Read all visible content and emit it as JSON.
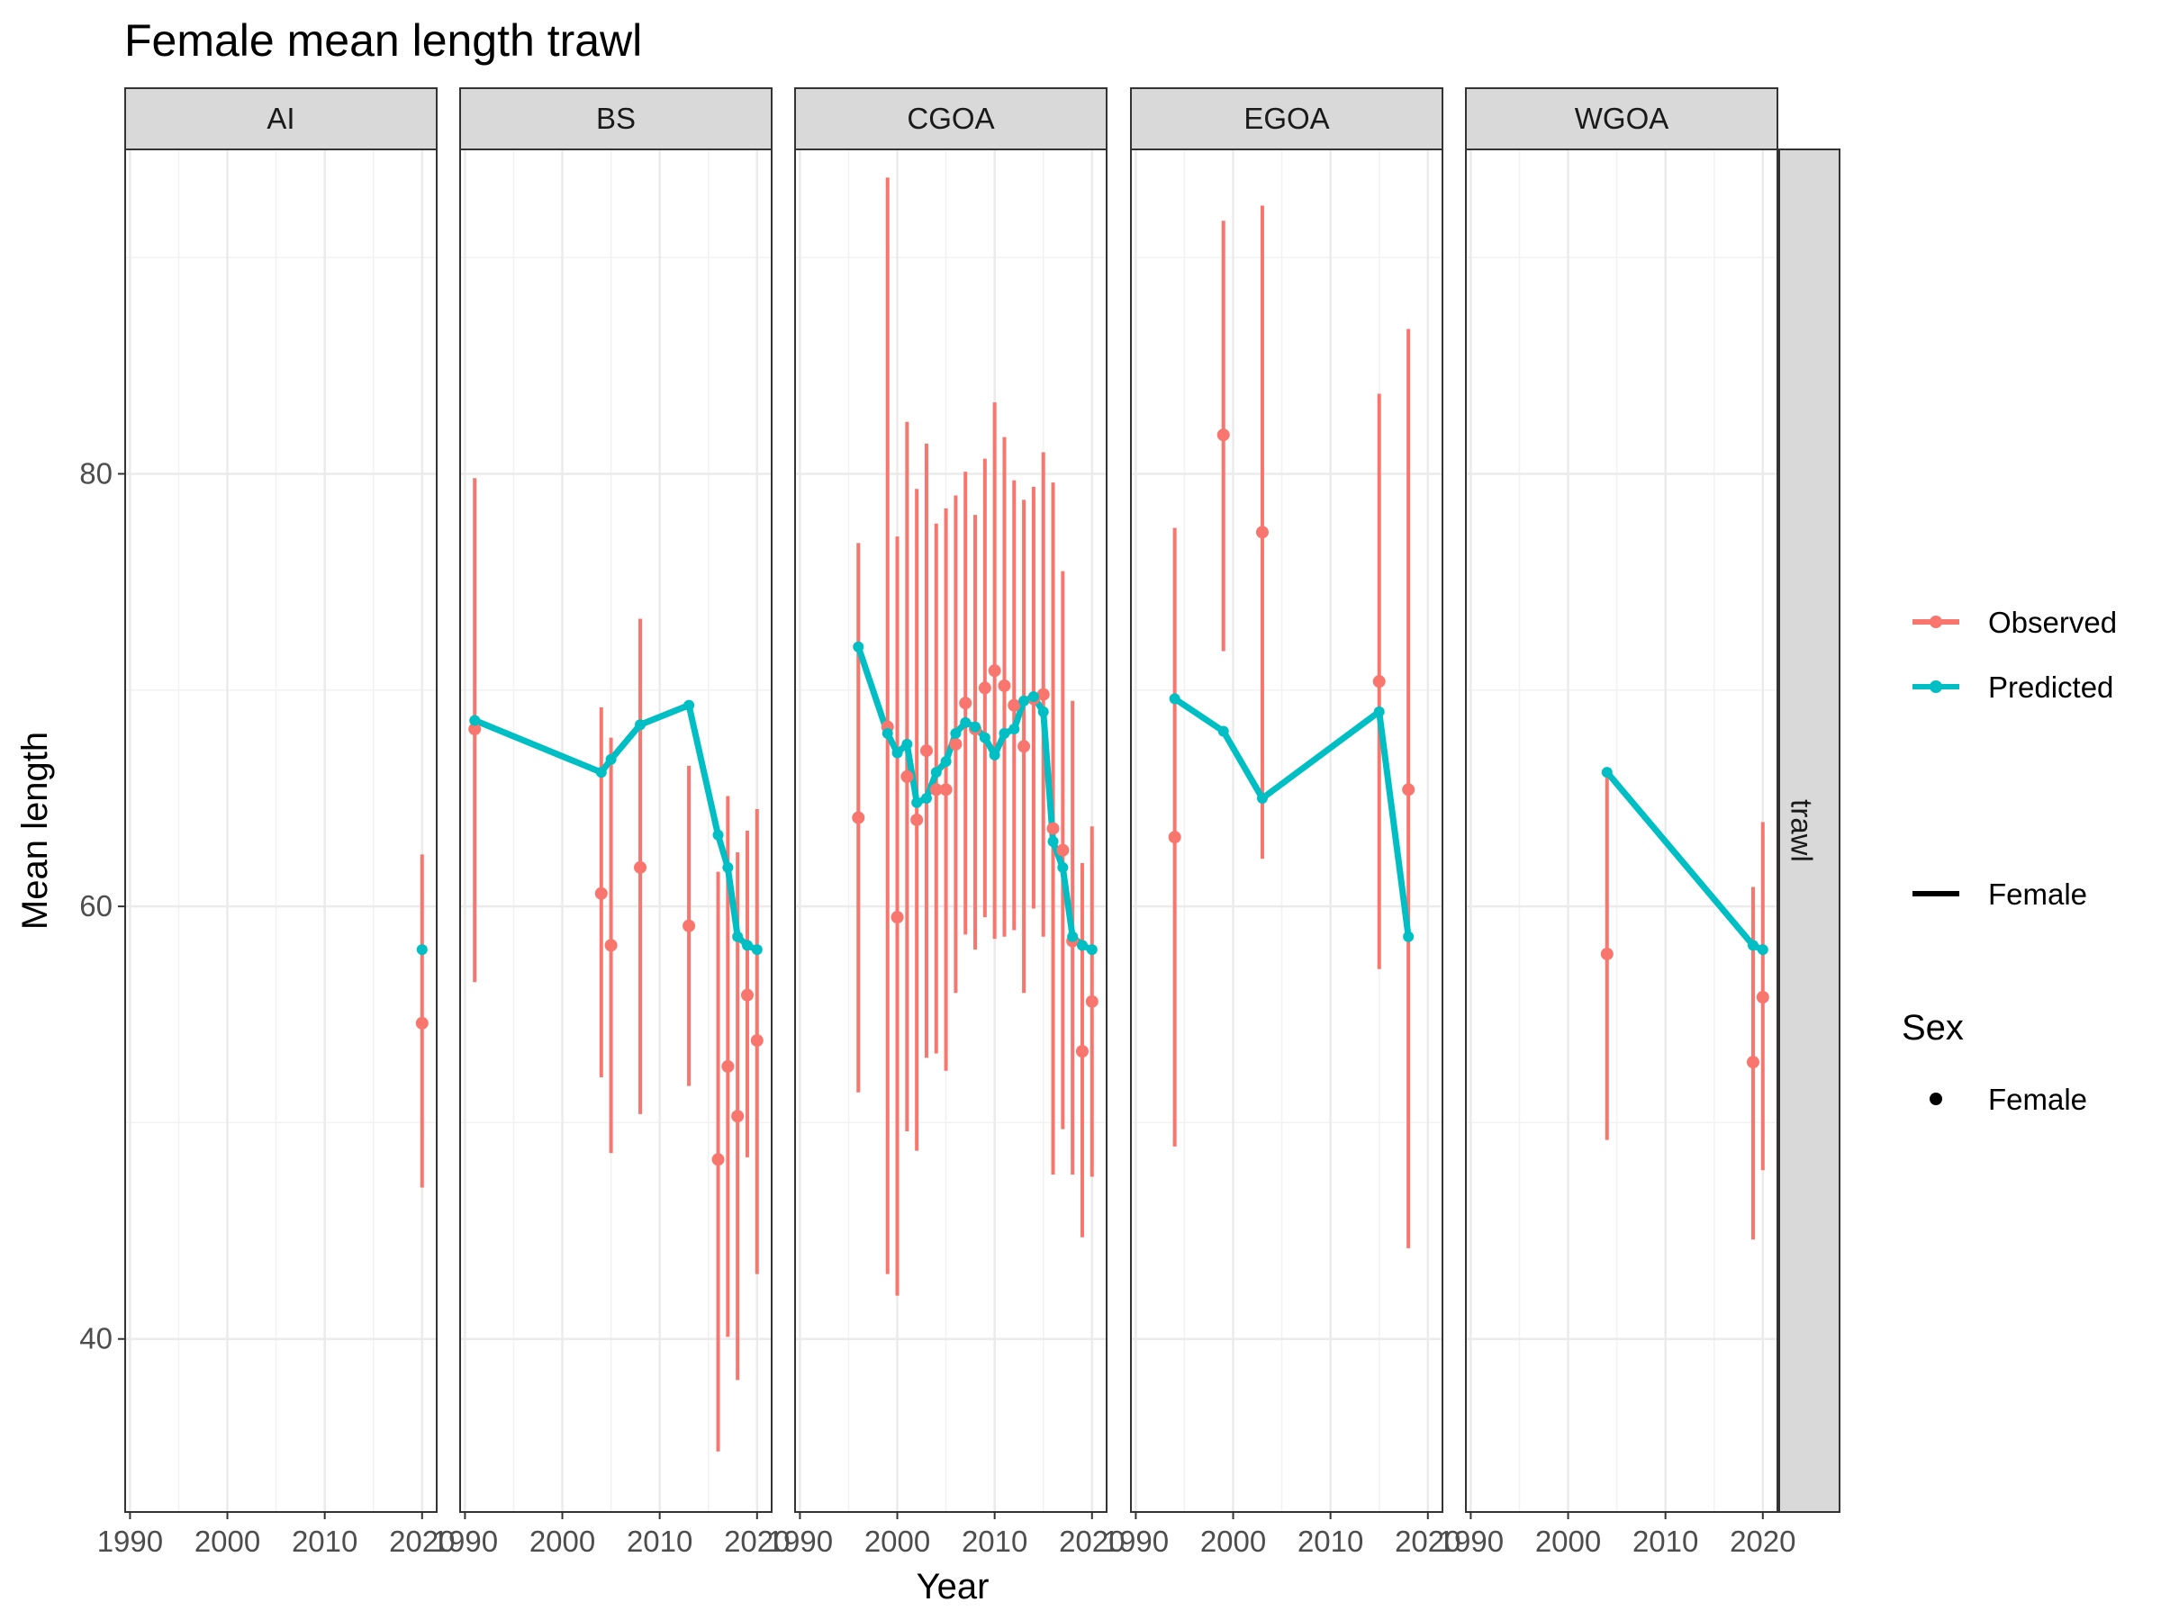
{
  "chart_data": {
    "type": "line",
    "title": "Female mean length trawl",
    "xlabel": "Year",
    "ylabel": "Mean length",
    "xlim": [
      1989.5,
      2021.5
    ],
    "ylim": [
      32,
      95
    ],
    "x_ticks": [
      1990,
      2000,
      2010,
      2020
    ],
    "y_ticks": [
      40,
      60,
      80
    ],
    "grid": true,
    "facet_row_label": "trawl",
    "colors": {
      "Observed": "#F8766D",
      "Predicted": "#00BFC4"
    },
    "legend": {
      "placement": "right",
      "items": [
        {
          "label": "Observed",
          "color": "#F8766D"
        },
        {
          "label": "Predicted",
          "color": "#00BFC4"
        },
        {
          "label": "Female",
          "kind": "line",
          "color": "#000000"
        }
      ],
      "sex_title": "Sex",
      "sex_items": [
        {
          "label": "Female",
          "kind": "point",
          "color": "#000000"
        }
      ]
    },
    "panels": [
      {
        "label": "AI",
        "observed": [
          {
            "x": 2020,
            "y": 54.6,
            "lo": 47.0,
            "hi": 62.4
          }
        ],
        "predicted": [
          {
            "x": 2020,
            "y": 58.0
          }
        ]
      },
      {
        "label": "BS",
        "observed": [
          {
            "x": 1991,
            "y": 68.2,
            "lo": 56.5,
            "hi": 79.8
          },
          {
            "x": 2004,
            "y": 60.6,
            "lo": 52.1,
            "hi": 69.2
          },
          {
            "x": 2005,
            "y": 58.2,
            "lo": 48.6,
            "hi": 67.8
          },
          {
            "x": 2008,
            "y": 61.8,
            "lo": 50.4,
            "hi": 73.3
          },
          {
            "x": 2013,
            "y": 59.1,
            "lo": 51.7,
            "hi": 66.5
          },
          {
            "x": 2016,
            "y": 48.3,
            "lo": 34.8,
            "hi": 61.6
          },
          {
            "x": 2017,
            "y": 52.6,
            "lo": 40.1,
            "hi": 65.1
          },
          {
            "x": 2018,
            "y": 50.3,
            "lo": 38.1,
            "hi": 62.5
          },
          {
            "x": 2019,
            "y": 55.9,
            "lo": 48.4,
            "hi": 63.5
          },
          {
            "x": 2020,
            "y": 53.8,
            "lo": 43.0,
            "hi": 64.5
          }
        ],
        "predicted": [
          {
            "x": 1991,
            "y": 68.6
          },
          {
            "x": 2004,
            "y": 66.2
          },
          {
            "x": 2005,
            "y": 66.8
          },
          {
            "x": 2008,
            "y": 68.4
          },
          {
            "x": 2013,
            "y": 69.3
          },
          {
            "x": 2016,
            "y": 63.3
          },
          {
            "x": 2017,
            "y": 61.8
          },
          {
            "x": 2018,
            "y": 58.6
          },
          {
            "x": 2019,
            "y": 58.2
          },
          {
            "x": 2020,
            "y": 58.0
          }
        ]
      },
      {
        "label": "CGOA",
        "observed": [
          {
            "x": 1996,
            "y": 64.1,
            "lo": 51.4,
            "hi": 76.8
          },
          {
            "x": 1999,
            "y": 68.3,
            "lo": 43.0,
            "hi": 93.7
          },
          {
            "x": 2000,
            "y": 59.5,
            "lo": 42.0,
            "hi": 77.1
          },
          {
            "x": 2001,
            "y": 66.0,
            "lo": 49.6,
            "hi": 82.4
          },
          {
            "x": 2002,
            "y": 64.0,
            "lo": 48.7,
            "hi": 79.3
          },
          {
            "x": 2003,
            "y": 67.2,
            "lo": 53.0,
            "hi": 81.4
          },
          {
            "x": 2004,
            "y": 65.4,
            "lo": 53.2,
            "hi": 77.7
          },
          {
            "x": 2005,
            "y": 65.4,
            "lo": 52.4,
            "hi": 78.4
          },
          {
            "x": 2006,
            "y": 67.5,
            "lo": 56.0,
            "hi": 79.0
          },
          {
            "x": 2007,
            "y": 69.4,
            "lo": 58.7,
            "hi": 80.1
          },
          {
            "x": 2008,
            "y": 68.2,
            "lo": 58.0,
            "hi": 78.1
          },
          {
            "x": 2009,
            "y": 70.1,
            "lo": 59.5,
            "hi": 80.7
          },
          {
            "x": 2010,
            "y": 70.9,
            "lo": 58.5,
            "hi": 83.3
          },
          {
            "x": 2011,
            "y": 70.2,
            "lo": 58.6,
            "hi": 81.7
          },
          {
            "x": 2012,
            "y": 69.3,
            "lo": 58.9,
            "hi": 79.7
          },
          {
            "x": 2013,
            "y": 67.4,
            "lo": 56.0,
            "hi": 78.8
          },
          {
            "x": 2014,
            "y": 69.6,
            "lo": 59.9,
            "hi": 79.4
          },
          {
            "x": 2015,
            "y": 69.8,
            "lo": 58.6,
            "hi": 81.0
          },
          {
            "x": 2016,
            "y": 63.6,
            "lo": 47.6,
            "hi": 79.6
          },
          {
            "x": 2017,
            "y": 62.6,
            "lo": 49.7,
            "hi": 75.5
          },
          {
            "x": 2018,
            "y": 58.4,
            "lo": 47.6,
            "hi": 69.5
          },
          {
            "x": 2019,
            "y": 53.3,
            "lo": 44.7,
            "hi": 62.0
          },
          {
            "x": 2020,
            "y": 55.6,
            "lo": 47.5,
            "hi": 63.7
          }
        ],
        "predicted": [
          {
            "x": 1996,
            "y": 72.0
          },
          {
            "x": 1999,
            "y": 68.0
          },
          {
            "x": 2000,
            "y": 67.1
          },
          {
            "x": 2001,
            "y": 67.5
          },
          {
            "x": 2002,
            "y": 64.8
          },
          {
            "x": 2003,
            "y": 65.0
          },
          {
            "x": 2004,
            "y": 66.2
          },
          {
            "x": 2005,
            "y": 66.7
          },
          {
            "x": 2006,
            "y": 68.0
          },
          {
            "x": 2007,
            "y": 68.5
          },
          {
            "x": 2008,
            "y": 68.3
          },
          {
            "x": 2009,
            "y": 67.8
          },
          {
            "x": 2010,
            "y": 67.0
          },
          {
            "x": 2011,
            "y": 68.0
          },
          {
            "x": 2012,
            "y": 68.2
          },
          {
            "x": 2013,
            "y": 69.5
          },
          {
            "x": 2014,
            "y": 69.7
          },
          {
            "x": 2015,
            "y": 69.0
          },
          {
            "x": 2016,
            "y": 63.0
          },
          {
            "x": 2017,
            "y": 61.8
          },
          {
            "x": 2018,
            "y": 58.6
          },
          {
            "x": 2019,
            "y": 58.2
          },
          {
            "x": 2020,
            "y": 58.0
          }
        ]
      },
      {
        "label": "EGOA",
        "observed": [
          {
            "x": 1994,
            "y": 63.2,
            "lo": 48.9,
            "hi": 77.5
          },
          {
            "x": 1999,
            "y": 81.8,
            "lo": 71.8,
            "hi": 91.7
          },
          {
            "x": 2003,
            "y": 77.3,
            "lo": 62.2,
            "hi": 92.4
          },
          {
            "x": 2015,
            "y": 70.4,
            "lo": 57.1,
            "hi": 83.7
          },
          {
            "x": 2018,
            "y": 65.4,
            "lo": 44.2,
            "hi": 86.7
          }
        ],
        "predicted": [
          {
            "x": 1994,
            "y": 69.6
          },
          {
            "x": 1999,
            "y": 68.1
          },
          {
            "x": 2003,
            "y": 65.0
          },
          {
            "x": 2015,
            "y": 69.0
          },
          {
            "x": 2018,
            "y": 58.6
          }
        ]
      },
      {
        "label": "WGOA",
        "observed": [
          {
            "x": 2004,
            "y": 57.8,
            "lo": 49.2,
            "hi": 66.3
          },
          {
            "x": 2019,
            "y": 52.8,
            "lo": 44.6,
            "hi": 60.9
          },
          {
            "x": 2020,
            "y": 55.8,
            "lo": 47.8,
            "hi": 63.9
          }
        ],
        "predicted": [
          {
            "x": 2004,
            "y": 66.2
          },
          {
            "x": 2019,
            "y": 58.2
          },
          {
            "x": 2020,
            "y": 58.0
          }
        ]
      }
    ]
  }
}
